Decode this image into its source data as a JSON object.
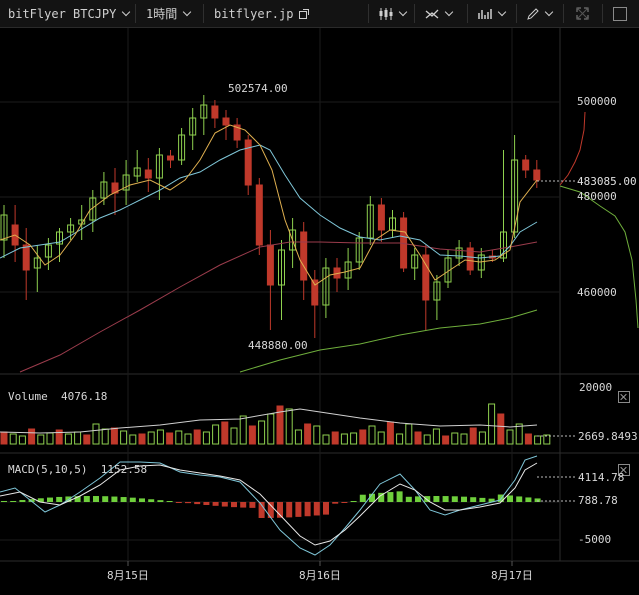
{
  "toolbar": {
    "symbol": "bitFlyer BTCJPY",
    "interval": "1時間",
    "site": "bitflyer.jp",
    "icons": [
      "candles-icon",
      "drawing-tools-icon",
      "indicators-icon",
      "pencil-icon",
      "fullscreen-icon"
    ]
  },
  "chart_labels": {
    "high_marker": "502574.00",
    "low_marker": "448880.00",
    "current_price": "483085.00",
    "price_ticks": [
      "500000",
      "480000",
      "460000"
    ],
    "volume_title": "Volume",
    "volume_value": "4076.18",
    "volume_ticks": [
      "20000",
      "2669.8493"
    ],
    "macd_title": "MACD(5,10,5)",
    "macd_value": "1152.58",
    "macd_ticks": [
      "4114.78",
      "788.78",
      "-5000"
    ],
    "date_ticks": [
      "8月15日",
      "8月16日",
      "8月17日"
    ]
  },
  "colors": {
    "up": "#8fd14f",
    "down": "#c0392b",
    "ma_fast": "#e0b050",
    "ma_mid": "#7fc6d8",
    "ma_slow": "#9b3c4c",
    "ma_long": "#6fae3c",
    "grid": "#1e1e1e"
  }
}
